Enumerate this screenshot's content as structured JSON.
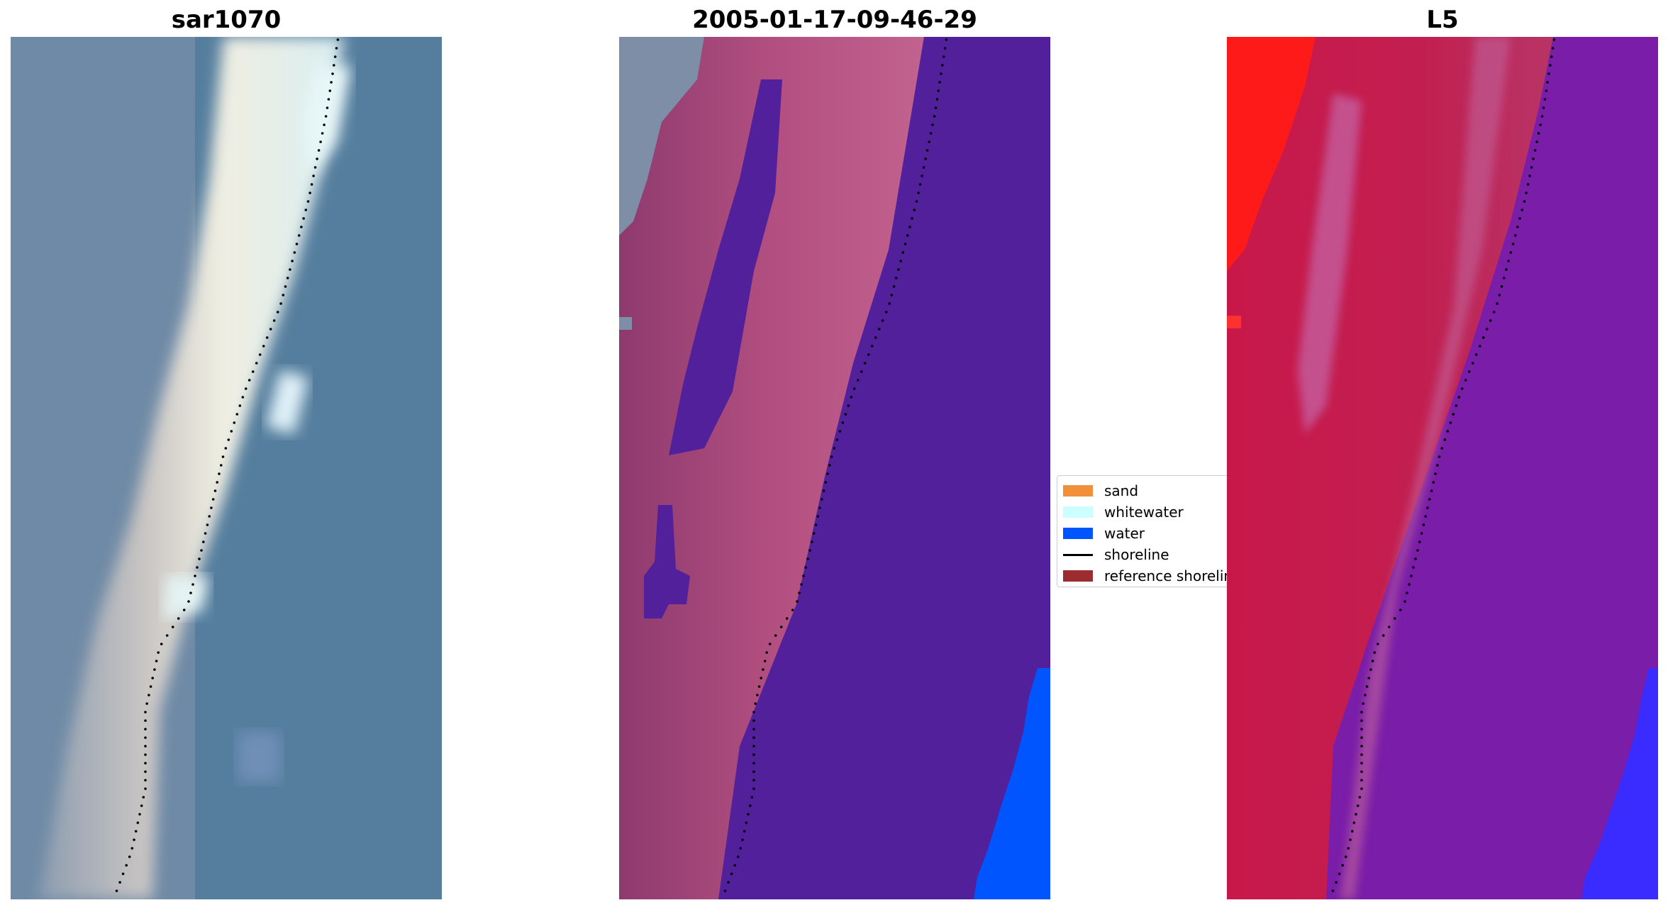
{
  "panels": [
    {
      "title": "sar1070",
      "kind": "rgb-image"
    },
    {
      "title": "2005-01-17-09-46-29",
      "kind": "classified-image"
    },
    {
      "title": "L5",
      "kind": "index-image"
    }
  ],
  "legend": {
    "items": [
      {
        "label": "sand",
        "type": "swatch",
        "color": "#f28f3b"
      },
      {
        "label": "whitewater",
        "type": "swatch",
        "color": "#ccffff"
      },
      {
        "label": "water",
        "type": "swatch",
        "color": "#0055ff"
      },
      {
        "label": "shoreline",
        "type": "line",
        "color": "#000000"
      },
      {
        "label": "reference shoreline",
        "type": "swatch",
        "color": "#9b2d30"
      }
    ]
  },
  "colors": {
    "water_blue": "#0055ff",
    "shoreline_dots": "#000000",
    "class_purple": "#52209a",
    "sand_pink": "#b24f80",
    "index_red": "#c8184a"
  }
}
